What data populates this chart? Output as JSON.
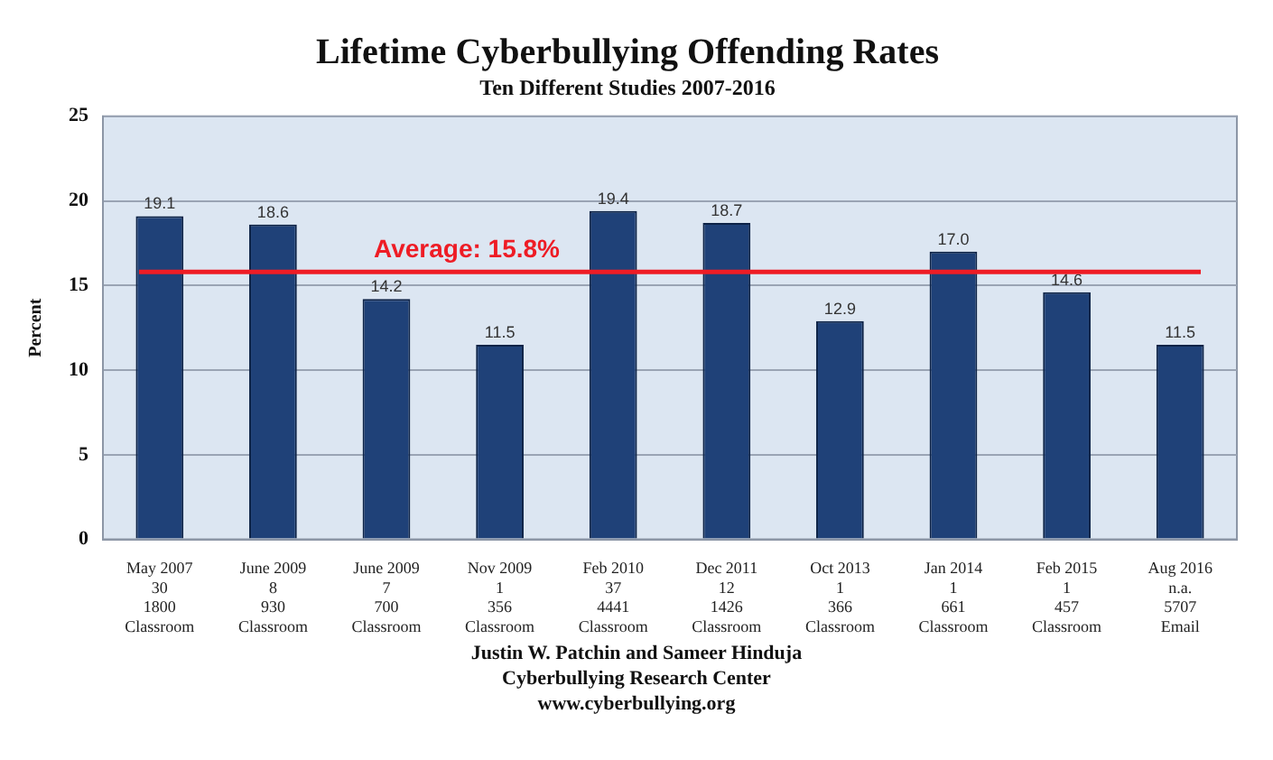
{
  "chart_data": {
    "type": "bar",
    "title": "Lifetime Cyberbullying Offending Rates",
    "subtitle": "Ten Different Studies 2007-2016",
    "ylabel": "Percent",
    "categories": [
      "May 2007\n30\n1800\nClassroom",
      "June 2009\n8\n930\nClassroom",
      "June 2009\n7\n700\nClassroom",
      "Nov 2009\n1\n356\nClassroom",
      "Feb 2010\n37\n4441\nClassroom",
      "Dec 2011\n12\n1426\nClassroom",
      "Oct 2013\n1\n366\nClassroom",
      "Jan 2014\n1\n661\nClassroom",
      "Feb 2015\n1\n457\nClassroom",
      "Aug 2016\nn.a.\n5707\nEmail"
    ],
    "values": [
      19.1,
      18.6,
      14.2,
      11.5,
      19.4,
      18.7,
      12.9,
      17.0,
      14.6,
      11.5
    ],
    "value_labels": [
      "19.1",
      "18.6",
      "14.2",
      "11.5",
      "19.4",
      "18.7",
      "12.9",
      "17.0",
      "14.6",
      "11.5"
    ],
    "color": "#1f4178",
    "ylim": [
      0,
      25
    ],
    "yticks": [
      0,
      5,
      10,
      15,
      20,
      25
    ],
    "grid": "y",
    "legend": false,
    "ref_lines": [
      {
        "axis": "y",
        "value": 15.8,
        "label": "Average: 15.8%",
        "color": "#ee1c25"
      }
    ],
    "annotations": [
      "Justin W. Patchin and Sameer Hinduja",
      "Cyberbullying Research Center",
      "www.cyberbullying.org"
    ]
  }
}
